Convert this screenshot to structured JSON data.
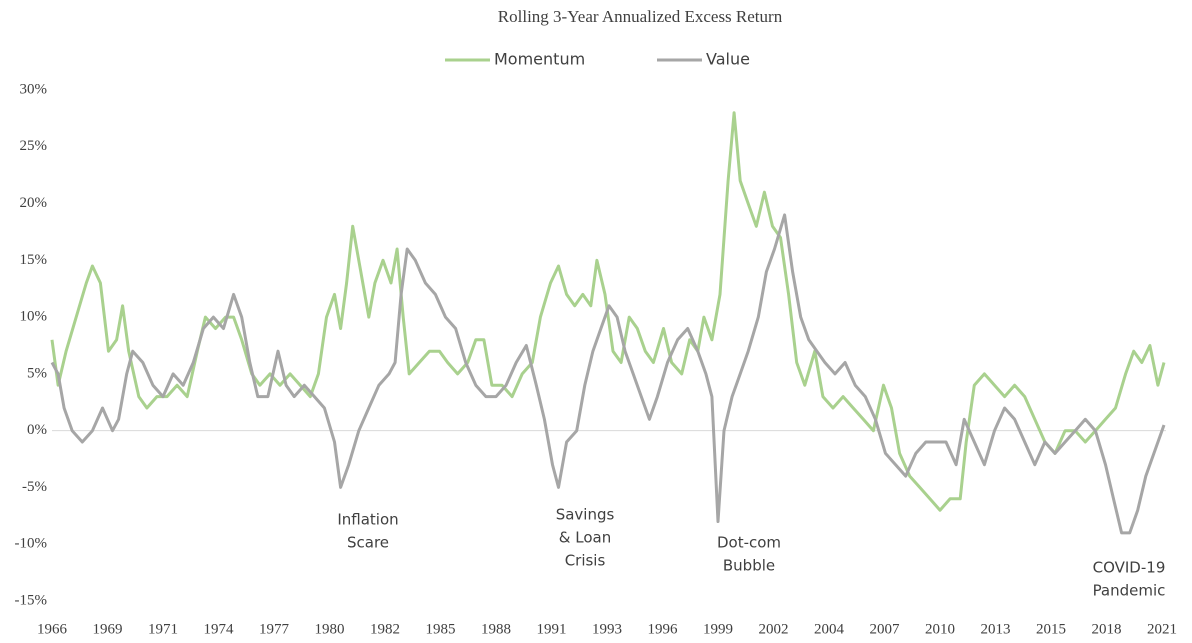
{
  "chart_data": {
    "type": "line",
    "title": "Rolling 3-Year Annualized Excess Return",
    "xlim": [
      1966,
      2021.2
    ],
    "xticks": [
      {
        "value": 1966,
        "label": "1966"
      },
      {
        "value": 1968.75,
        "label": "1969"
      },
      {
        "value": 1971.5,
        "label": "1971"
      },
      {
        "value": 1974.25,
        "label": "1974"
      },
      {
        "value": 1977,
        "label": "1977"
      },
      {
        "value": 1979.75,
        "label": "1980"
      },
      {
        "value": 1982.5,
        "label": "1982"
      },
      {
        "value": 1985.25,
        "label": "1985"
      },
      {
        "value": 1988,
        "label": "1988"
      },
      {
        "value": 1990.75,
        "label": "1991"
      },
      {
        "value": 1993.5,
        "label": "1993"
      },
      {
        "value": 1996.25,
        "label": "1996"
      },
      {
        "value": 1999,
        "label": "1999"
      },
      {
        "value": 2001.75,
        "label": "2002"
      },
      {
        "value": 2004.5,
        "label": "2004"
      },
      {
        "value": 2007.25,
        "label": "2007"
      },
      {
        "value": 2010,
        "label": "2010"
      },
      {
        "value": 2012.75,
        "label": "2013"
      },
      {
        "value": 2015.5,
        "label": "2015"
      },
      {
        "value": 2018.25,
        "label": "2018"
      },
      {
        "value": 2021,
        "label": "2021"
      }
    ],
    "ylim": [
      -15,
      30
    ],
    "yticks": [
      {
        "value": -15,
        "label": "-15%"
      },
      {
        "value": -10,
        "label": "-10%"
      },
      {
        "value": -5,
        "label": "-5%"
      },
      {
        "value": 0,
        "label": "0%"
      },
      {
        "value": 5,
        "label": "5%"
      },
      {
        "value": 10,
        "label": "10%"
      },
      {
        "value": 15,
        "label": "15%"
      },
      {
        "value": 20,
        "label": "20%"
      },
      {
        "value": 25,
        "label": "25%"
      },
      {
        "value": 30,
        "label": "30%"
      }
    ],
    "grid": false,
    "zero_line": true,
    "legend": "top",
    "series": [
      {
        "name": "Momentum",
        "color": "#a9d18e",
        "x": [
          1966.0,
          1966.3,
          1966.7,
          1967.2,
          1967.7,
          1968.0,
          1968.4,
          1968.8,
          1969.2,
          1969.5,
          1969.8,
          1970.3,
          1970.7,
          1971.2,
          1971.7,
          1972.2,
          1972.7,
          1973.2,
          1973.6,
          1974.1,
          1974.6,
          1975.0,
          1975.4,
          1975.9,
          1976.3,
          1976.8,
          1977.3,
          1977.8,
          1978.3,
          1978.8,
          1979.2,
          1979.6,
          1980.0,
          1980.3,
          1980.6,
          1980.9,
          1981.3,
          1981.7,
          1982.0,
          1982.4,
          1982.8,
          1983.1,
          1983.4,
          1983.7,
          1984.2,
          1984.7,
          1985.2,
          1985.6,
          1986.1,
          1986.6,
          1987.0,
          1987.4,
          1987.8,
          1988.3,
          1988.8,
          1989.3,
          1989.8,
          1990.2,
          1990.7,
          1991.1,
          1991.5,
          1991.9,
          1992.3,
          1992.7,
          1993.0,
          1993.4,
          1993.8,
          1994.2,
          1994.6,
          1995.0,
          1995.4,
          1995.8,
          1996.3,
          1996.7,
          1997.2,
          1997.6,
          1998.0,
          1998.3,
          1998.7,
          1999.1,
          1999.5,
          1999.8,
          2000.1,
          2000.5,
          2000.9,
          2001.3,
          2001.7,
          2002.1,
          2002.5,
          2002.9,
          2003.3,
          2003.8,
          2004.2,
          2004.7,
          2005.2,
          2005.7,
          2006.2,
          2006.7,
          2007.2,
          2007.6,
          2008.0,
          2008.5,
          2009.0,
          2009.5,
          2010.0,
          2010.5,
          2011.0,
          2011.3,
          2011.7,
          2012.2,
          2012.7,
          2013.2,
          2013.7,
          2014.2,
          2014.7,
          2015.2,
          2015.7,
          2016.2,
          2016.7,
          2017.2,
          2017.7,
          2018.2,
          2018.7,
          2019.2,
          2019.6,
          2020.0,
          2020.4,
          2020.8,
          2021.1
        ],
        "values": [
          8,
          4,
          7,
          10,
          13,
          14.5,
          13,
          7,
          8,
          11,
          7,
          3,
          2,
          3,
          3,
          4,
          3,
          7,
          10,
          9,
          10,
          10,
          8,
          5,
          4,
          5,
          4,
          5,
          4,
          3,
          5,
          10,
          12,
          9,
          13,
          18,
          14,
          10,
          13,
          15,
          13,
          16,
          10,
          5,
          6,
          7,
          7,
          6,
          5,
          6,
          8,
          8,
          4,
          4,
          3,
          5,
          6,
          10,
          13,
          14.5,
          12,
          11,
          12,
          11,
          15,
          12,
          7,
          6,
          10,
          9,
          7,
          6,
          9,
          6,
          5,
          8,
          7,
          10,
          8,
          12,
          22,
          28,
          22,
          20,
          18,
          21,
          18,
          17,
          12,
          6,
          4,
          7,
          3,
          2,
          3,
          2,
          1,
          0,
          4,
          2,
          -2,
          -4,
          -5,
          -6,
          -7,
          -6,
          -6,
          -1,
          4,
          5,
          4,
          3,
          4,
          3,
          1,
          -1,
          -2,
          0,
          0,
          -1,
          0,
          1,
          2,
          5,
          7,
          6,
          7.5,
          4,
          6
        ]
      },
      {
        "name": "Value",
        "color": "#a6a6a6",
        "x": [
          1966.0,
          1966.3,
          1966.6,
          1967.0,
          1967.5,
          1968.0,
          1968.5,
          1969.0,
          1969.3,
          1969.7,
          1970.0,
          1970.5,
          1971.0,
          1971.5,
          1972.0,
          1972.5,
          1973.0,
          1973.5,
          1974.0,
          1974.5,
          1975.0,
          1975.4,
          1975.8,
          1976.2,
          1976.7,
          1977.2,
          1977.6,
          1978.0,
          1978.5,
          1979.0,
          1979.5,
          1980.0,
          1980.3,
          1980.7,
          1981.2,
          1981.7,
          1982.2,
          1982.7,
          1983.0,
          1983.3,
          1983.6,
          1984.0,
          1984.5,
          1985.0,
          1985.5,
          1986.0,
          1986.5,
          1987.0,
          1987.5,
          1988.0,
          1988.5,
          1989.0,
          1989.5,
          1990.0,
          1990.4,
          1990.8,
          1991.1,
          1991.5,
          1992.0,
          1992.4,
          1992.8,
          1993.2,
          1993.6,
          1994.0,
          1994.4,
          1994.8,
          1995.2,
          1995.6,
          1996.0,
          1996.5,
          1997.0,
          1997.5,
          1998.0,
          1998.4,
          1998.7,
          1999.0,
          1999.3,
          1999.7,
          2000.1,
          2000.5,
          2001.0,
          2001.4,
          2001.8,
          2002.3,
          2002.7,
          2003.1,
          2003.5,
          2003.9,
          2004.3,
          2004.8,
          2005.3,
          2005.8,
          2006.3,
          2006.8,
          2007.3,
          2007.8,
          2008.3,
          2008.8,
          2009.3,
          2009.8,
          2010.3,
          2010.8,
          2011.2,
          2011.7,
          2012.2,
          2012.7,
          2013.2,
          2013.7,
          2014.2,
          2014.7,
          2015.2,
          2015.7,
          2016.2,
          2016.7,
          2017.2,
          2017.7,
          2018.2,
          2018.6,
          2019.0,
          2019.4,
          2019.8,
          2020.2,
          2020.6,
          2021.1
        ],
        "values": [
          6,
          5,
          2,
          0,
          -1,
          0,
          2,
          0,
          1,
          5,
          7,
          6,
          4,
          3,
          5,
          4,
          6,
          9,
          10,
          9,
          12,
          10,
          6,
          3,
          3,
          7,
          4,
          3,
          4,
          3,
          2,
          -1,
          -5,
          -3,
          0,
          2,
          4,
          5,
          6,
          12,
          16,
          15,
          13,
          12,
          10,
          9,
          6,
          4,
          3,
          3,
          4,
          6,
          7.5,
          4,
          1,
          -3,
          -5,
          -1,
          0,
          4,
          7,
          9,
          11,
          10,
          7,
          5,
          3,
          1,
          3,
          6,
          8,
          9,
          7,
          5,
          3,
          -8,
          0,
          3,
          5,
          7,
          10,
          14,
          16,
          19,
          14,
          10,
          8,
          7,
          6,
          5,
          6,
          4,
          3,
          1,
          -2,
          -3,
          -4,
          -2,
          -1,
          -1,
          -1,
          -3,
          1,
          -1,
          -3,
          0,
          2,
          1,
          -1,
          -3,
          -1,
          -2,
          -1,
          0,
          1,
          0,
          -3,
          -6,
          -9,
          -9,
          -7,
          -4,
          -2,
          0.5
        ]
      }
    ],
    "annotations": [
      {
        "lines": [
          "Inflation",
          "Scare"
        ]
      },
      {
        "lines": [
          "Savings",
          "& Loan",
          "Crisis"
        ]
      },
      {
        "lines": [
          "Dot-com",
          "Bubble"
        ]
      },
      {
        "lines": [
          "COVID-19",
          "Pandemic"
        ]
      }
    ]
  }
}
